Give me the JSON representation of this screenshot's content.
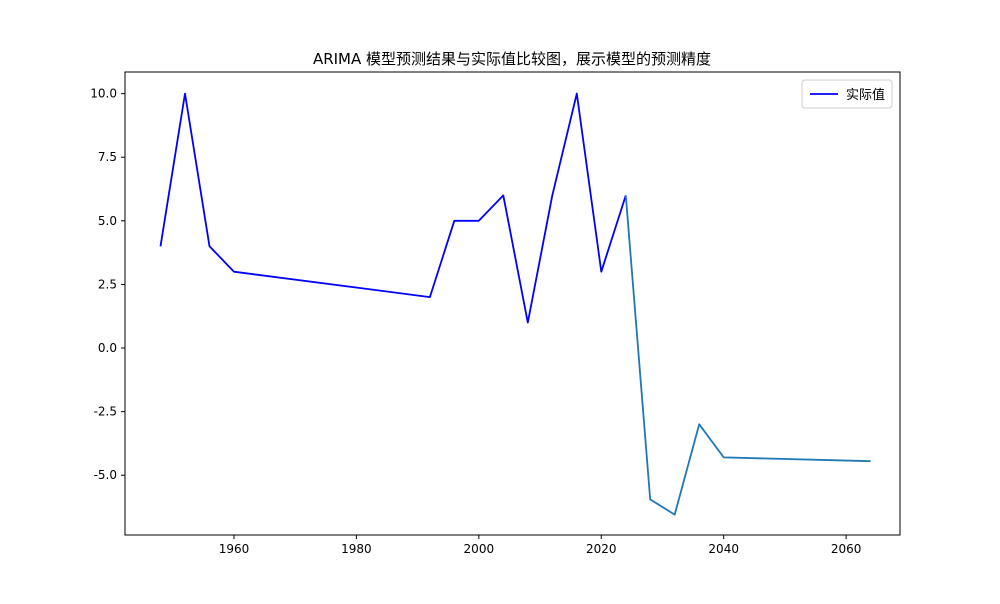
{
  "chart_data": {
    "type": "line",
    "title": "ARIMA 模型预测结果与实际值比较图，展示模型的预测精度",
    "xlabel": "",
    "ylabel": "",
    "xlim": [
      1942.2,
      2068.8
    ],
    "ylim": [
      -7.35,
      10.85
    ],
    "x_ticks": [
      1960,
      1980,
      2000,
      2020,
      2040,
      2060
    ],
    "y_ticks": [
      -5.0,
      -2.5,
      0.0,
      2.5,
      5.0,
      7.5,
      10.0
    ],
    "y_tick_labels": [
      "-5.0",
      "-2.5",
      "0.0",
      "2.5",
      "5.0",
      "7.5",
      "10.0"
    ],
    "legend_position": "top-right",
    "grid": false,
    "series": [
      {
        "name": "实际值",
        "color": "#0000ff",
        "x": [
          1948,
          1952,
          1956,
          1960,
          1992,
          1996,
          2000,
          2004,
          2008,
          2012,
          2016,
          2020,
          2024
        ],
        "y": [
          4,
          10,
          4,
          3,
          2,
          5,
          5,
          6,
          1,
          6,
          10,
          3,
          6
        ]
      },
      {
        "color": "#1f77b4",
        "x": [
          2024,
          2028,
          2032,
          2036,
          2040,
          2064
        ],
        "y": [
          6,
          -5.95,
          -6.55,
          -3.0,
          -4.3,
          -4.45
        ]
      }
    ]
  }
}
